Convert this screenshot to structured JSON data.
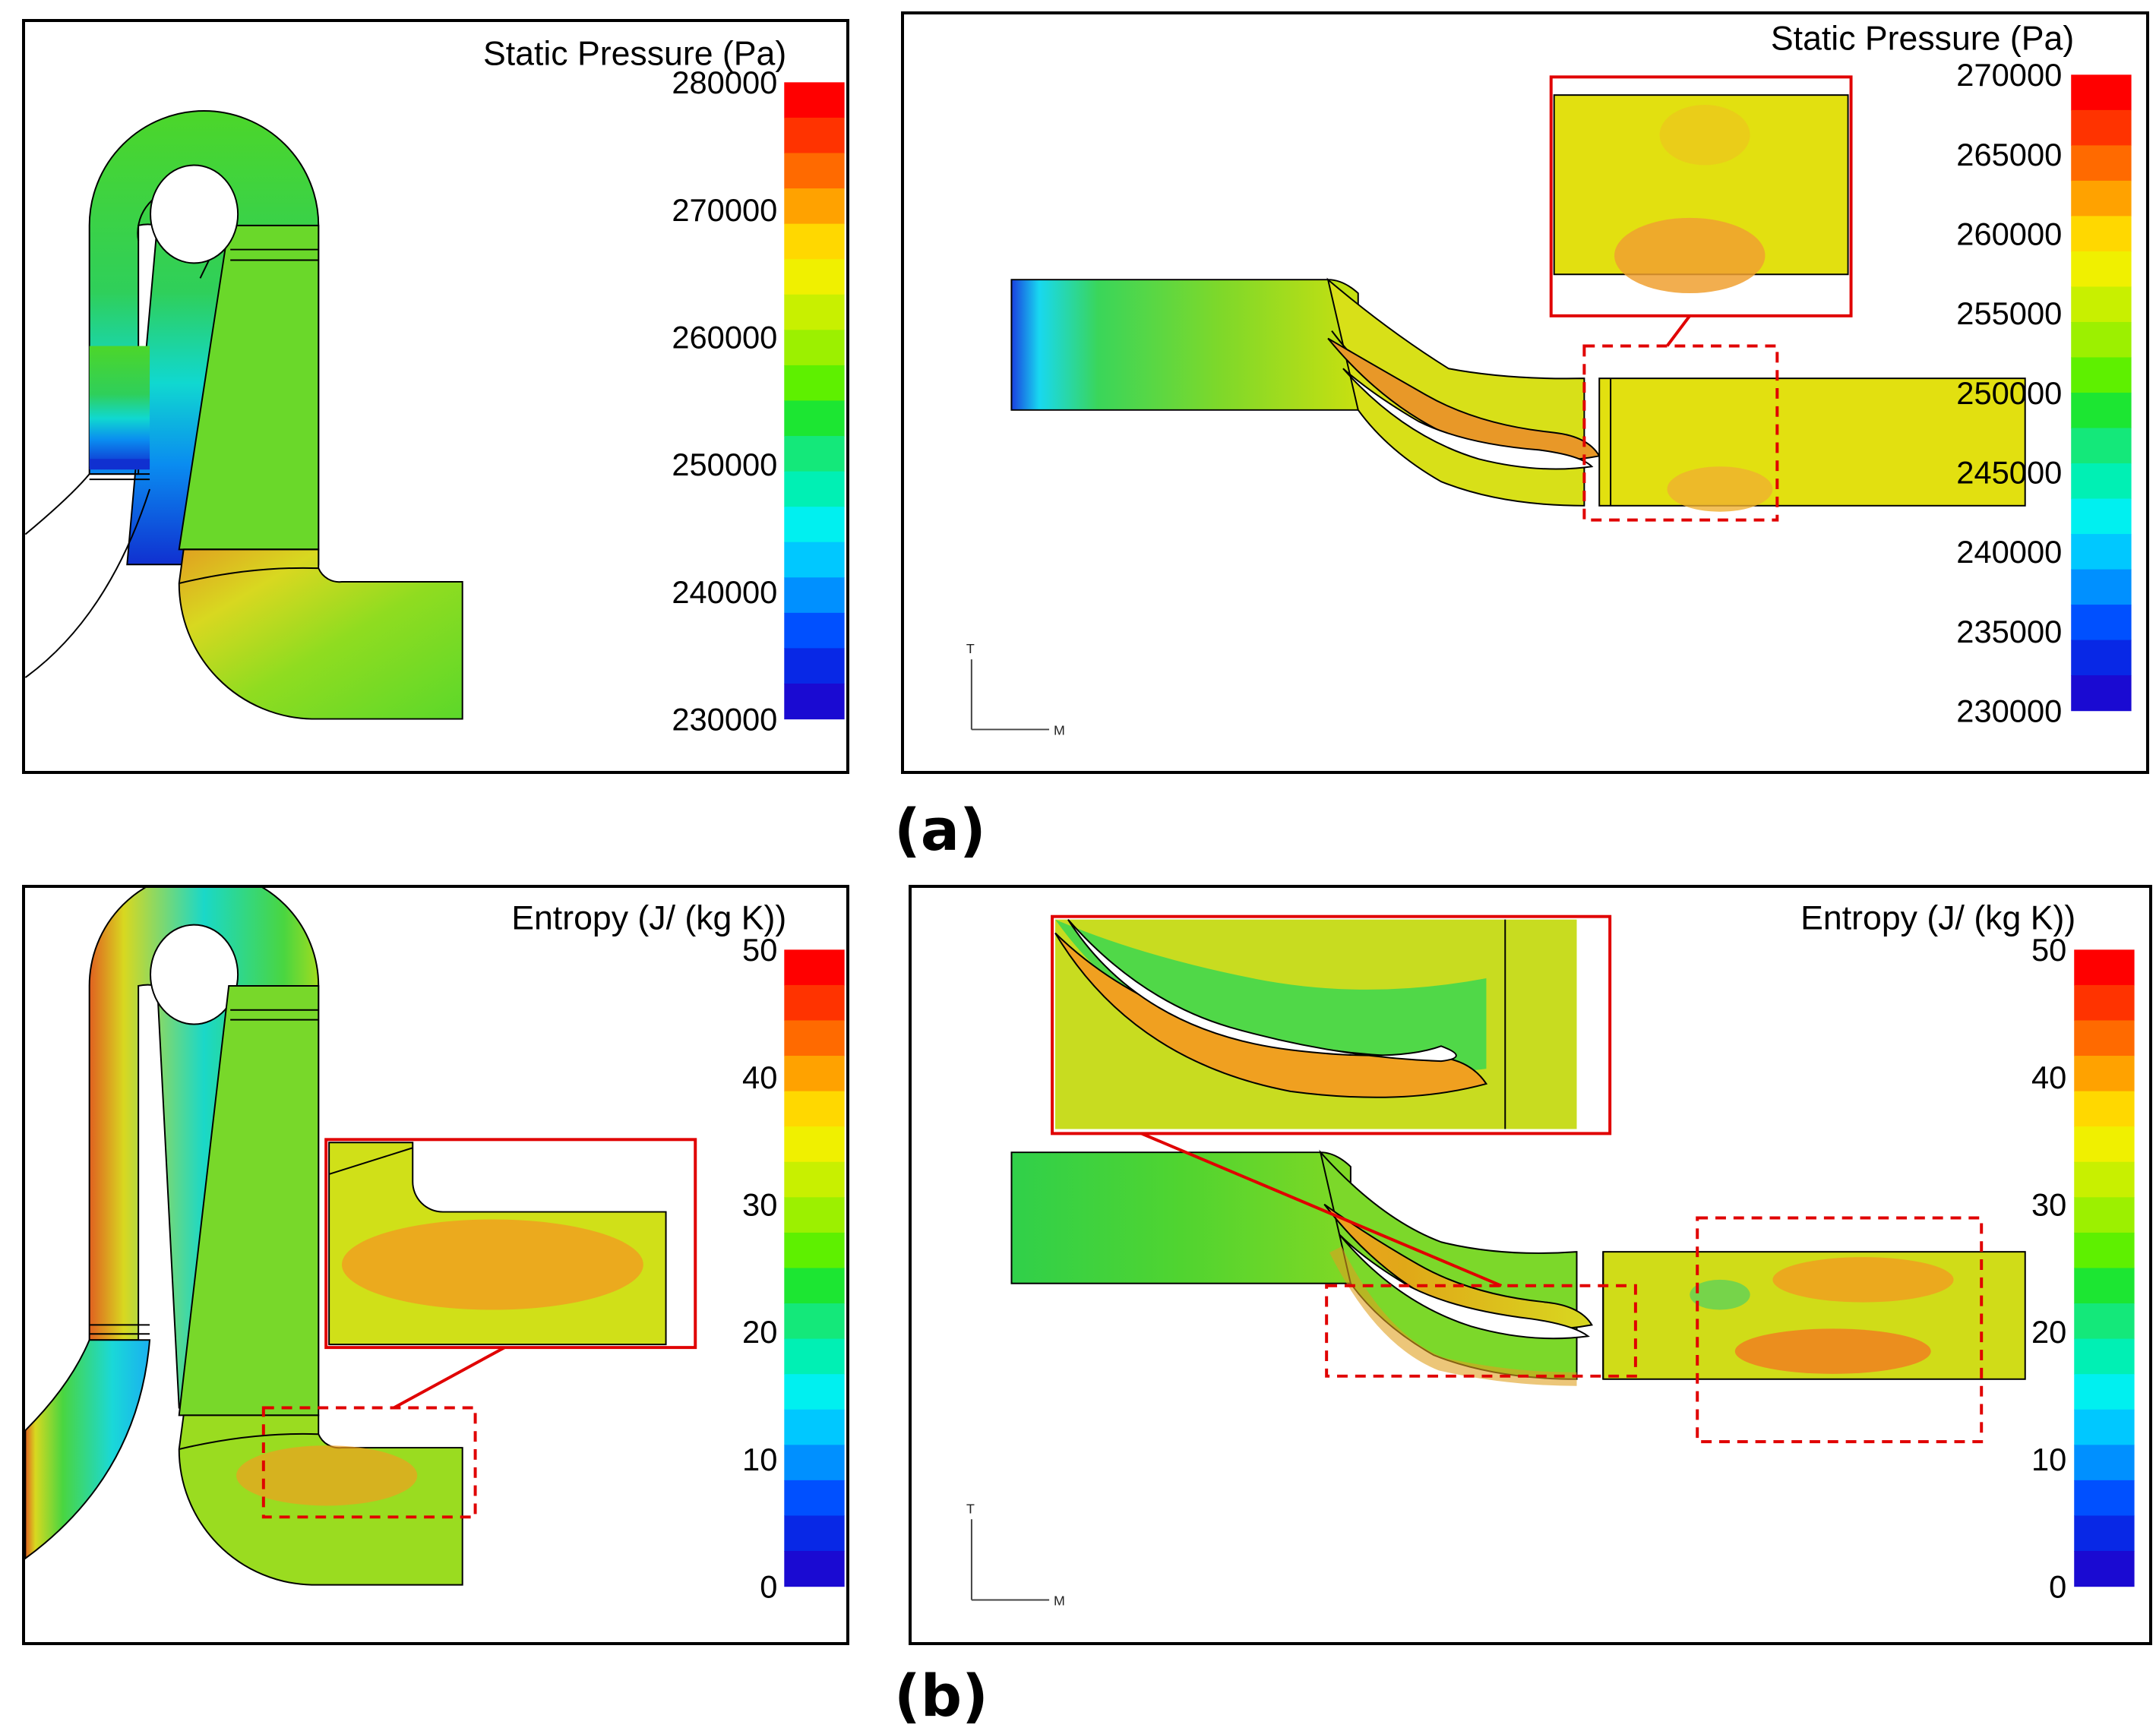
{
  "captions": {
    "a": "(a)",
    "b": "(b)"
  },
  "axis_labels": {
    "vertical": "T",
    "horizontal": "M"
  },
  "panels": {
    "pressure_left": {
      "title": "Static Pressure (Pa)",
      "ticks": [
        "280000",
        "270000",
        "260000",
        "250000",
        "240000",
        "230000"
      ]
    },
    "pressure_right": {
      "title": "Static Pressure (Pa)",
      "ticks": [
        "270000",
        "265000",
        "260000",
        "255000",
        "250000",
        "245000",
        "240000",
        "235000",
        "230000"
      ]
    },
    "entropy_left": {
      "title": "Entropy (J/ (kg K))",
      "ticks": [
        "50",
        "40",
        "30",
        "20",
        "10",
        "0"
      ]
    },
    "entropy_right": {
      "title": "Entropy (J/ (kg K))",
      "ticks": [
        "50",
        "40",
        "30",
        "20",
        "10",
        "0"
      ]
    }
  },
  "colormap": {
    "bands": [
      "#ff0000",
      "#ff3300",
      "#ff6a00",
      "#ffa200",
      "#ffd800",
      "#f0f000",
      "#c8f000",
      "#9cf000",
      "#5ef000",
      "#1ce632",
      "#14e87a",
      "#00f0b4",
      "#00f0f0",
      "#00c8ff",
      "#0090ff",
      "#0050ff",
      "#0828e6",
      "#1a0ad2"
    ]
  }
}
